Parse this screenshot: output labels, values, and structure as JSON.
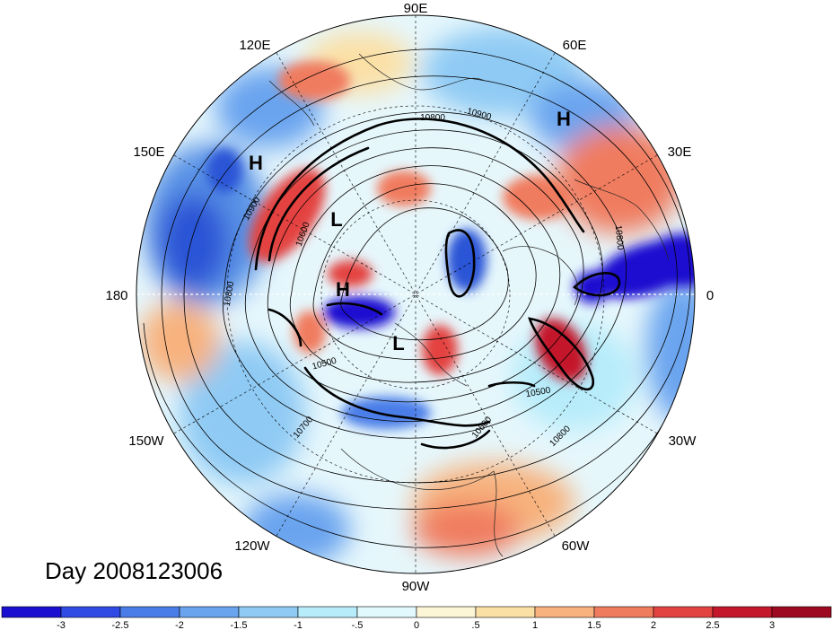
{
  "map": {
    "projection": "north polar stereographic",
    "longitude_labels": [
      "90E",
      "60E",
      "30E",
      "0",
      "30W",
      "60W",
      "90W",
      "120W",
      "150W",
      "180",
      "150E",
      "120E"
    ],
    "pressure_labels": [
      {
        "text": "H"
      },
      {
        "text": "H"
      },
      {
        "text": "H"
      },
      {
        "text": "L"
      },
      {
        "text": "L"
      }
    ],
    "contour_labels": [
      "10800",
      "10900",
      "10900",
      "10800",
      "10600",
      "10800",
      "10500",
      "10700",
      "10500",
      "10600",
      "10800",
      "10800"
    ],
    "title": "Day 2008123006"
  },
  "colorbar": {
    "tick_labels": [
      "-3",
      "-2.5",
      "-2",
      "-1.5",
      "-1",
      "-.5",
      "0",
      ".5",
      "1",
      "1.5",
      "2",
      "2.5",
      "3"
    ],
    "colors": [
      "#1a0fd0",
      "#2f4be3",
      "#4a7de8",
      "#6aa4ef",
      "#8fcaf4",
      "#b7ecfa",
      "#e1f8fd",
      "#fdf6d6",
      "#fbe0a6",
      "#f7b27e",
      "#f07c5e",
      "#e34340",
      "#c4172b",
      "#9c0920"
    ]
  }
}
